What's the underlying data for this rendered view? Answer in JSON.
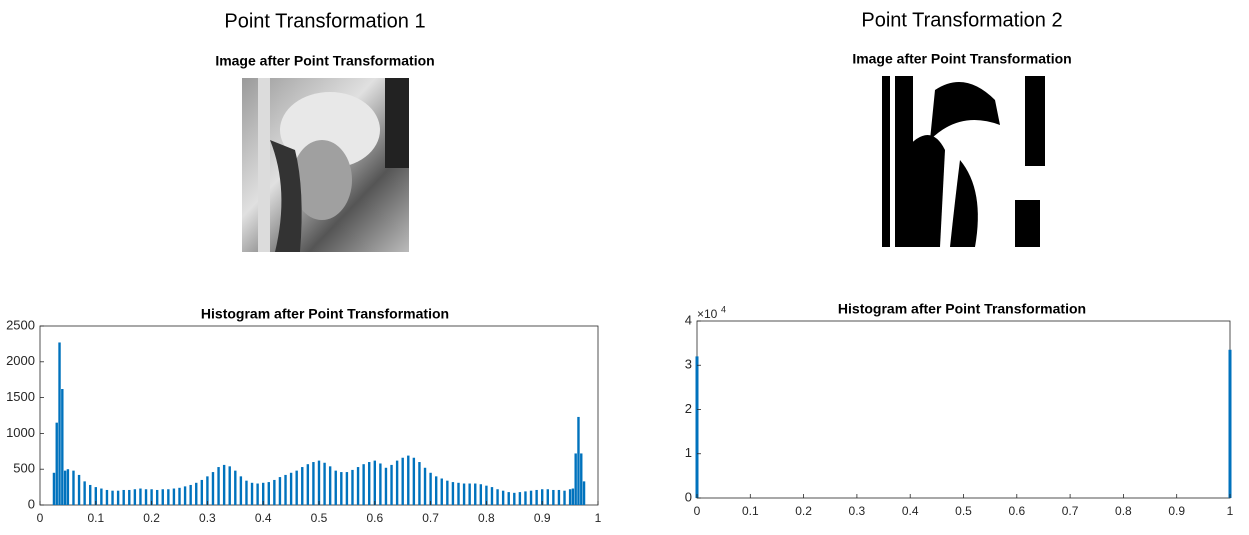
{
  "chart_data": [
    {
      "type": "bar",
      "figure_title": "Point Transformation 1",
      "image_title": "Image after Point Transformation",
      "title": "Histogram after Point Transformation",
      "color": "#0072bd",
      "x": [
        0.025,
        0.03,
        0.035,
        0.04,
        0.045,
        0.05,
        0.06,
        0.07,
        0.08,
        0.09,
        0.1,
        0.11,
        0.12,
        0.13,
        0.14,
        0.15,
        0.16,
        0.17,
        0.18,
        0.19,
        0.2,
        0.21,
        0.22,
        0.23,
        0.24,
        0.25,
        0.26,
        0.27,
        0.28,
        0.29,
        0.3,
        0.31,
        0.32,
        0.33,
        0.34,
        0.35,
        0.36,
        0.37,
        0.38,
        0.39,
        0.4,
        0.41,
        0.42,
        0.43,
        0.44,
        0.45,
        0.46,
        0.47,
        0.48,
        0.49,
        0.5,
        0.51,
        0.52,
        0.53,
        0.54,
        0.55,
        0.56,
        0.57,
        0.58,
        0.59,
        0.6,
        0.61,
        0.62,
        0.63,
        0.64,
        0.65,
        0.66,
        0.67,
        0.68,
        0.69,
        0.7,
        0.71,
        0.72,
        0.73,
        0.74,
        0.75,
        0.76,
        0.77,
        0.78,
        0.79,
        0.8,
        0.81,
        0.82,
        0.83,
        0.84,
        0.85,
        0.86,
        0.87,
        0.88,
        0.89,
        0.9,
        0.91,
        0.92,
        0.93,
        0.94,
        0.95,
        0.955,
        0.96,
        0.965,
        0.97,
        0.975
      ],
      "values": [
        450,
        1150,
        2270,
        1620,
        480,
        500,
        480,
        420,
        330,
        280,
        250,
        230,
        210,
        200,
        200,
        210,
        210,
        220,
        230,
        220,
        220,
        210,
        220,
        220,
        230,
        240,
        260,
        280,
        310,
        350,
        400,
        460,
        530,
        560,
        540,
        480,
        400,
        340,
        310,
        300,
        310,
        320,
        350,
        390,
        420,
        450,
        480,
        530,
        570,
        600,
        620,
        590,
        540,
        480,
        460,
        460,
        490,
        530,
        570,
        600,
        620,
        580,
        520,
        560,
        620,
        660,
        690,
        660,
        600,
        520,
        450,
        400,
        370,
        340,
        320,
        310,
        300,
        300,
        300,
        290,
        270,
        250,
        220,
        200,
        180,
        170,
        180,
        190,
        200,
        210,
        220,
        220,
        210,
        210,
        200,
        220,
        230,
        720,
        1230,
        720,
        330
      ],
      "xlim": [
        0,
        1
      ],
      "xticks": [
        0,
        0.1,
        0.2,
        0.3,
        0.4,
        0.5,
        0.6,
        0.7,
        0.8,
        0.9,
        1
      ],
      "ylim": [
        0,
        2500
      ],
      "yticks": [
        0,
        500,
        1000,
        1500,
        2000,
        2500
      ]
    },
    {
      "type": "bar",
      "figure_title": "Point Transformation 2",
      "image_title": "Image after Point Transformation",
      "title": "Histogram after Point Transformation",
      "color": "#0072bd",
      "x": [
        0,
        1
      ],
      "values": [
        32000,
        33500
      ],
      "xlim": [
        0,
        1
      ],
      "xticks": [
        0,
        0.1,
        0.2,
        0.3,
        0.4,
        0.5,
        0.6,
        0.7,
        0.8,
        0.9,
        1
      ],
      "ylim": [
        0,
        40000
      ],
      "yticks": [
        0,
        {
          "value": 10000,
          "label": "1"
        },
        {
          "value": 20000,
          "label": "2"
        },
        {
          "value": 30000,
          "label": "3"
        },
        {
          "value": 40000,
          "label": "4"
        }
      ],
      "y_multiplier": {
        "base": "×10",
        "exponent": "4"
      }
    }
  ]
}
